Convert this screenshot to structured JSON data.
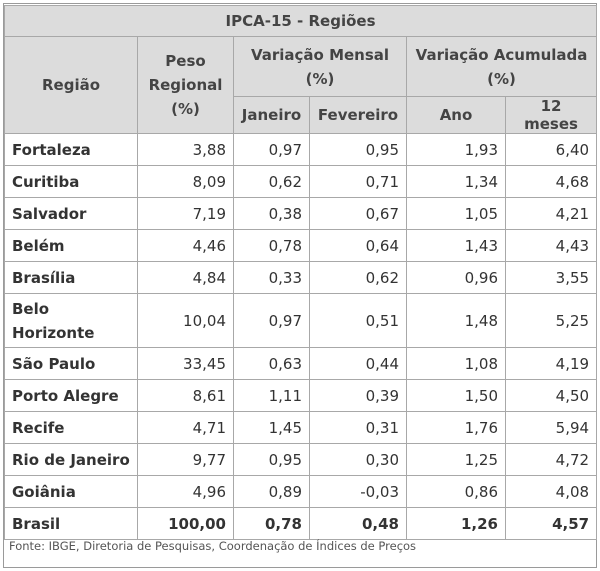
{
  "table": {
    "title": "IPCA-15 - Regiões",
    "headers": {
      "regiao": "Região",
      "peso": "Peso Regional (%)",
      "mensal": "Variação Mensal (%)",
      "acumulada": "Variação Acumulada (%)",
      "janeiro": "Janeiro",
      "fevereiro": "Fevereiro",
      "ano": "Ano",
      "doze_meses": "12 meses"
    },
    "rows": [
      {
        "regiao": "Fortaleza",
        "peso": "3,88",
        "janeiro": "0,97",
        "fevereiro": "0,95",
        "ano": "1,93",
        "doze_meses": "6,40"
      },
      {
        "regiao": "Curitiba",
        "peso": "8,09",
        "janeiro": "0,62",
        "fevereiro": "0,71",
        "ano": "1,34",
        "doze_meses": "4,68"
      },
      {
        "regiao": "Salvador",
        "peso": "7,19",
        "janeiro": "0,38",
        "fevereiro": "0,67",
        "ano": "1,05",
        "doze_meses": "4,21"
      },
      {
        "regiao": "Belém",
        "peso": "4,46",
        "janeiro": "0,78",
        "fevereiro": "0,64",
        "ano": "1,43",
        "doze_meses": "4,43"
      },
      {
        "regiao": "Brasília",
        "peso": "4,84",
        "janeiro": "0,33",
        "fevereiro": "0,62",
        "ano": "0,96",
        "doze_meses": "3,55"
      },
      {
        "regiao": "Belo Horizonte",
        "peso": "10,04",
        "janeiro": "0,97",
        "fevereiro": "0,51",
        "ano": "1,48",
        "doze_meses": "5,25"
      },
      {
        "regiao": "São Paulo",
        "peso": "33,45",
        "janeiro": "0,63",
        "fevereiro": "0,44",
        "ano": "1,08",
        "doze_meses": "4,19"
      },
      {
        "regiao": "Porto Alegre",
        "peso": "8,61",
        "janeiro": "1,11",
        "fevereiro": "0,39",
        "ano": "1,50",
        "doze_meses": "4,50"
      },
      {
        "regiao": "Recife",
        "peso": "4,71",
        "janeiro": "1,45",
        "fevereiro": "0,31",
        "ano": "1,76",
        "doze_meses": "5,94"
      },
      {
        "regiao": "Rio de Janeiro",
        "peso": "9,77",
        "janeiro": "0,95",
        "fevereiro": "0,30",
        "ano": "1,25",
        "doze_meses": "4,72"
      },
      {
        "regiao": "Goiânia",
        "peso": "4,96",
        "janeiro": "0,89",
        "fevereiro": "-0,03",
        "ano": "0,86",
        "doze_meses": "4,08"
      }
    ],
    "total": {
      "regiao": "Brasil",
      "peso": "100,00",
      "janeiro": "0,78",
      "fevereiro": "0,48",
      "ano": "1,26",
      "doze_meses": "4,57"
    },
    "source": "Fonte: IBGE, Diretoria de Pesquisas, Coordenação de Índices de Preços"
  }
}
